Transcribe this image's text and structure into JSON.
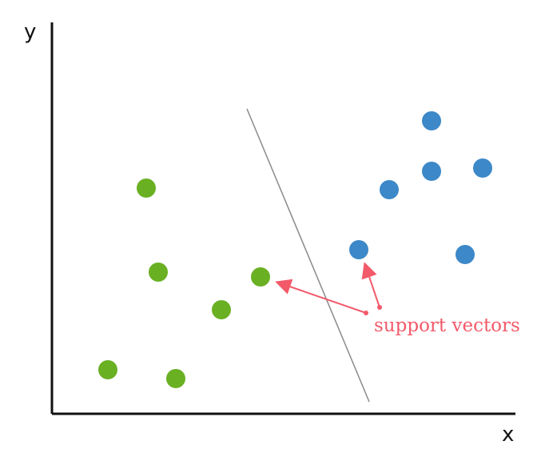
{
  "labels": {
    "y_axis": "y",
    "x_axis": "x",
    "annotation": "support vectors"
  },
  "colors": {
    "green": "#6ab023",
    "blue": "#3c88c8",
    "annotation": "#f25a6a",
    "axis": "#111111",
    "separator": "#8a8a8a"
  }
}
